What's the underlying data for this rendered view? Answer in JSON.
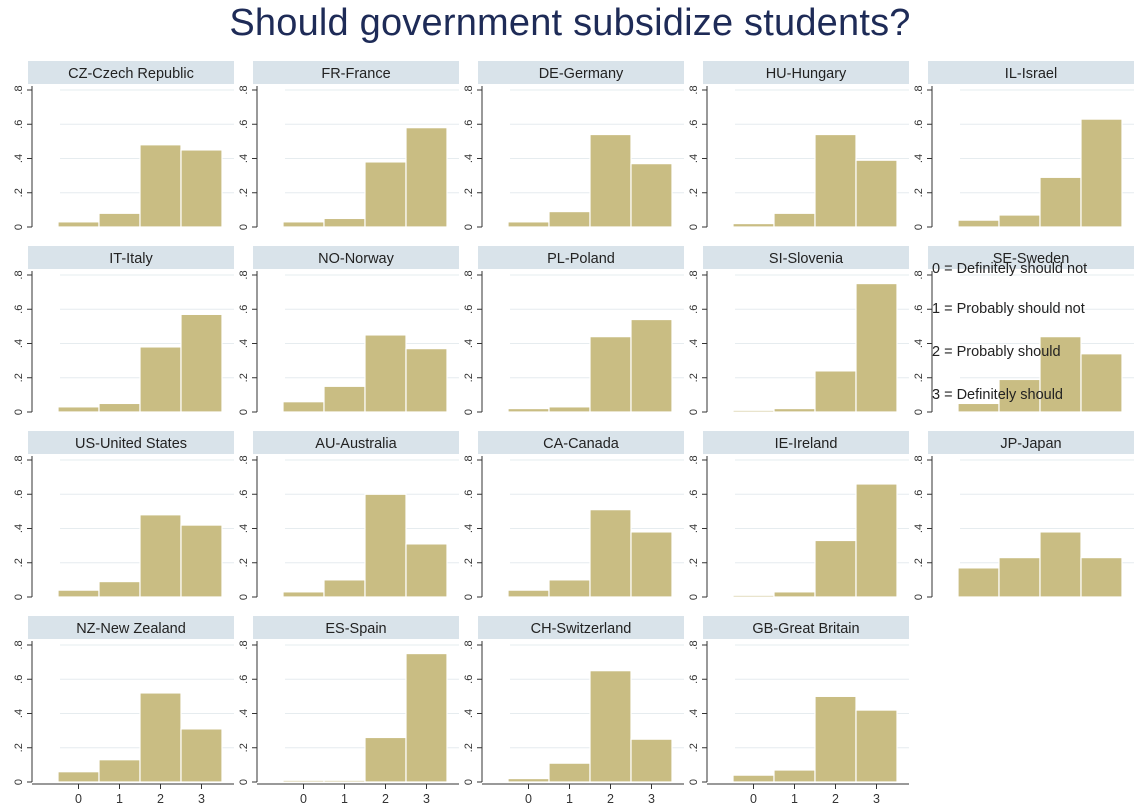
{
  "title": "Should government subsidize students?",
  "colors": {
    "bar_fill": "#c9bd83",
    "bar_stroke": "#ffffff",
    "strip_fill": "#d9e3ea",
    "grid": "#e6ecef",
    "axis": "#333333",
    "title": "#1e2b57"
  },
  "legend": [
    {
      "code": "0",
      "label": "0 = Definitely should not"
    },
    {
      "code": "1",
      "label": "1 = Probably should not"
    },
    {
      "code": "2",
      "label": "2 = Probably should"
    },
    {
      "code": "3",
      "label": "3 = Definitely should"
    }
  ],
  "chart_data": {
    "type": "bar",
    "title": "Should government subsidize students?",
    "xlabel": "",
    "ylabel": "",
    "categories": [
      "0",
      "1",
      "2",
      "3"
    ],
    "ylim": [
      0,
      0.8
    ],
    "yticks": [
      0,
      0.2,
      0.4,
      0.6,
      0.8
    ],
    "ytick_labels": [
      "0",
      ".2",
      ".4",
      ".6",
      ".8"
    ],
    "grid": true,
    "panels": [
      {
        "name": "CZ-Czech Republic",
        "values": [
          0.03,
          0.08,
          0.48,
          0.45
        ]
      },
      {
        "name": "FR-France",
        "values": [
          0.03,
          0.05,
          0.38,
          0.58
        ]
      },
      {
        "name": "DE-Germany",
        "values": [
          0.03,
          0.09,
          0.54,
          0.37
        ]
      },
      {
        "name": "HU-Hungary",
        "values": [
          0.02,
          0.08,
          0.54,
          0.39
        ]
      },
      {
        "name": "IL-Israel",
        "values": [
          0.04,
          0.07,
          0.29,
          0.63
        ]
      },
      {
        "name": "IT-Italy",
        "values": [
          0.03,
          0.05,
          0.38,
          0.57
        ]
      },
      {
        "name": "NO-Norway",
        "values": [
          0.06,
          0.15,
          0.45,
          0.37
        ]
      },
      {
        "name": "PL-Poland",
        "values": [
          0.02,
          0.03,
          0.44,
          0.54
        ]
      },
      {
        "name": "SI-Slovenia",
        "values": [
          0.01,
          0.02,
          0.24,
          0.75
        ]
      },
      {
        "name": "SE-Sweden",
        "values": [
          0.05,
          0.19,
          0.44,
          0.34
        ]
      },
      {
        "name": "US-United States",
        "values": [
          0.04,
          0.09,
          0.48,
          0.42
        ]
      },
      {
        "name": "AU-Australia",
        "values": [
          0.03,
          0.1,
          0.6,
          0.31
        ]
      },
      {
        "name": "CA-Canada",
        "values": [
          0.04,
          0.1,
          0.51,
          0.38
        ]
      },
      {
        "name": "IE-Ireland",
        "values": [
          0.01,
          0.03,
          0.33,
          0.66
        ]
      },
      {
        "name": "JP-Japan",
        "values": [
          0.17,
          0.23,
          0.38,
          0.23
        ]
      },
      {
        "name": "NZ-New Zealand",
        "values": [
          0.06,
          0.13,
          0.52,
          0.31
        ]
      },
      {
        "name": "ES-Spain",
        "values": [
          0.01,
          0.01,
          0.26,
          0.75
        ]
      },
      {
        "name": "CH-Switzerland",
        "values": [
          0.02,
          0.11,
          0.65,
          0.25
        ]
      },
      {
        "name": "GB-Great Britain",
        "values": [
          0.04,
          0.07,
          0.5,
          0.42
        ]
      }
    ]
  }
}
